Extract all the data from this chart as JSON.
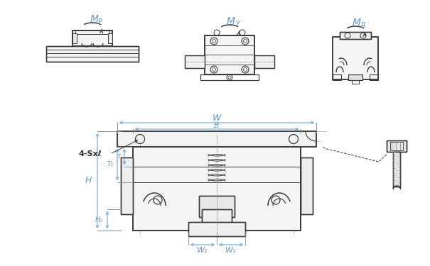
{
  "bg_color": "#ffffff",
  "line_color": "#3a3a3a",
  "dim_color": "#5b9bd5",
  "bold_label_color": "#2a2a2a",
  "fig_w": 6.05,
  "fig_h": 3.75,
  "dpi": 100,
  "labels": {
    "mp": [
      "M",
      "P"
    ],
    "my": [
      "M",
      "Y"
    ],
    "mr": [
      "M",
      "R"
    ],
    "W": "W",
    "B": "B",
    "H": "H",
    "H2": "H₂",
    "T": "T",
    "T1": "T₁",
    "W1": "W₁",
    "W2": "W₂",
    "foursxl": "4-Sxℓ"
  }
}
